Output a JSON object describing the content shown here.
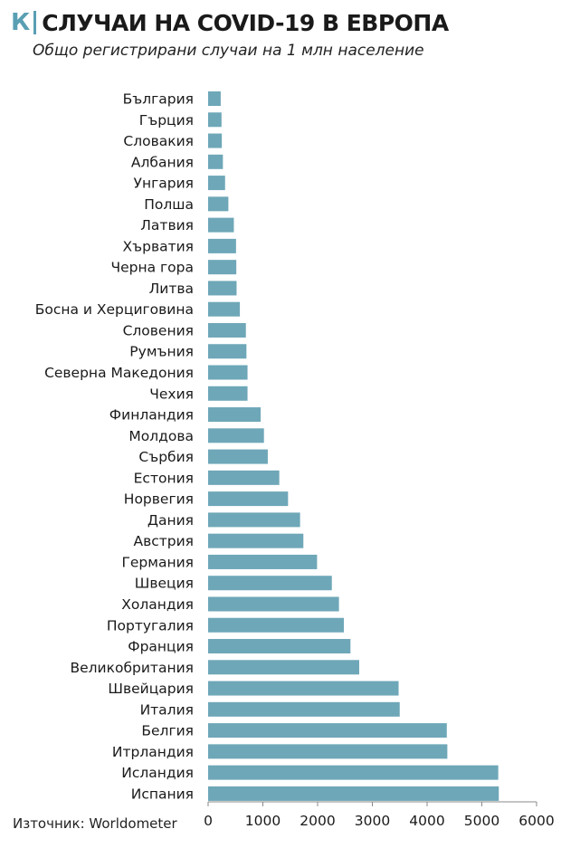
{
  "header": {
    "logo": "К",
    "title": "СЛУЧАИ НА COVID-19 В ЕВРОПА",
    "subtitle": "Общо регистрирани случаи на 1 млн население"
  },
  "footer": {
    "source": "Източник: Worldometer"
  },
  "chart_data": {
    "type": "bar",
    "orientation": "horizontal",
    "title": "СЛУЧАИ НА COVID-19 В ЕВРОПА",
    "subtitle": "Общо регистрирани случаи на 1 млн население",
    "categories": [
      "България",
      "Гърция",
      "Словакия",
      "Албания",
      "Унгария",
      "Полша",
      "Латвия",
      "Хърватия",
      "Черна гора",
      "Литва",
      "Босна и Херциговина",
      "Словения",
      "Румъния",
      "Северна Македония",
      "Чехия",
      "Финландия",
      "Молдова",
      "Сърбия",
      "Естония",
      "Норвегия",
      "Дания",
      "Австрия",
      "Германия",
      "Швеция",
      "Холандия",
      "Португалия",
      "Франция",
      "Великобритания",
      "Швейцария",
      "Италия",
      "Белгия",
      "Итрландия",
      "Исландия",
      "Испания"
    ],
    "values": [
      230,
      245,
      250,
      270,
      310,
      370,
      470,
      510,
      515,
      520,
      580,
      690,
      700,
      720,
      720,
      960,
      1020,
      1090,
      1300,
      1460,
      1680,
      1740,
      1990,
      2260,
      2390,
      2480,
      2600,
      2760,
      3480,
      3500,
      4360,
      4370,
      5300,
      5310
    ],
    "xticks": [
      0,
      1000,
      2000,
      3000,
      4000,
      5000,
      6000
    ],
    "xlim": [
      0,
      6000
    ],
    "bar_color": "#6ea7b8",
    "grid": false
  }
}
